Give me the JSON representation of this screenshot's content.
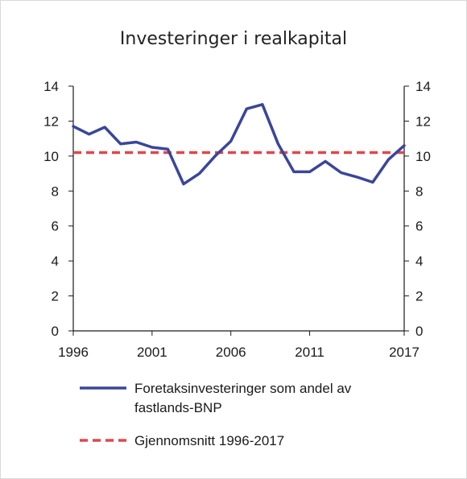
{
  "chart_data": {
    "type": "line",
    "title": "Investeringer i realkapital",
    "xlabel": "",
    "ylabel": "",
    "xlim": [
      1996,
      2017
    ],
    "ylim": [
      0,
      14
    ],
    "y_ticks": [
      0,
      2,
      4,
      6,
      8,
      10,
      12,
      14
    ],
    "x_tick_labels": [
      "1996",
      "2001",
      "2006",
      "2011",
      "2017"
    ],
    "x_tick_values": [
      1996,
      2001,
      2006,
      2011,
      2017
    ],
    "grid": false,
    "legend_position": "bottom",
    "series": [
      {
        "name": "Foretaksinvesteringer som andel av fastlands-BNP",
        "legend_lines": [
          "Foretaksinvesteringer som andel av",
          "fastlands-BNP"
        ],
        "style": "solid",
        "color": "#3a4699",
        "x": [
          1996,
          1997,
          1998,
          1999,
          2000,
          2001,
          2002,
          2003,
          2004,
          2005,
          2006,
          2007,
          2008,
          2009,
          2010,
          2011,
          2012,
          2013,
          2014,
          2015,
          2016,
          2017
        ],
        "y": [
          11.7,
          11.25,
          11.65,
          10.7,
          10.8,
          10.5,
          10.4,
          8.4,
          9.0,
          10.0,
          10.85,
          12.7,
          12.95,
          10.7,
          9.1,
          9.1,
          9.7,
          9.05,
          8.8,
          8.5,
          9.8,
          10.6
        ]
      },
      {
        "name": "Gjennomsnitt 1996-2017",
        "legend_lines": [
          "Gjennomsnitt 1996-2017"
        ],
        "style": "dashed",
        "color": "#e0474c",
        "x": [
          1996,
          2017
        ],
        "y": [
          10.2,
          10.2
        ]
      }
    ]
  }
}
